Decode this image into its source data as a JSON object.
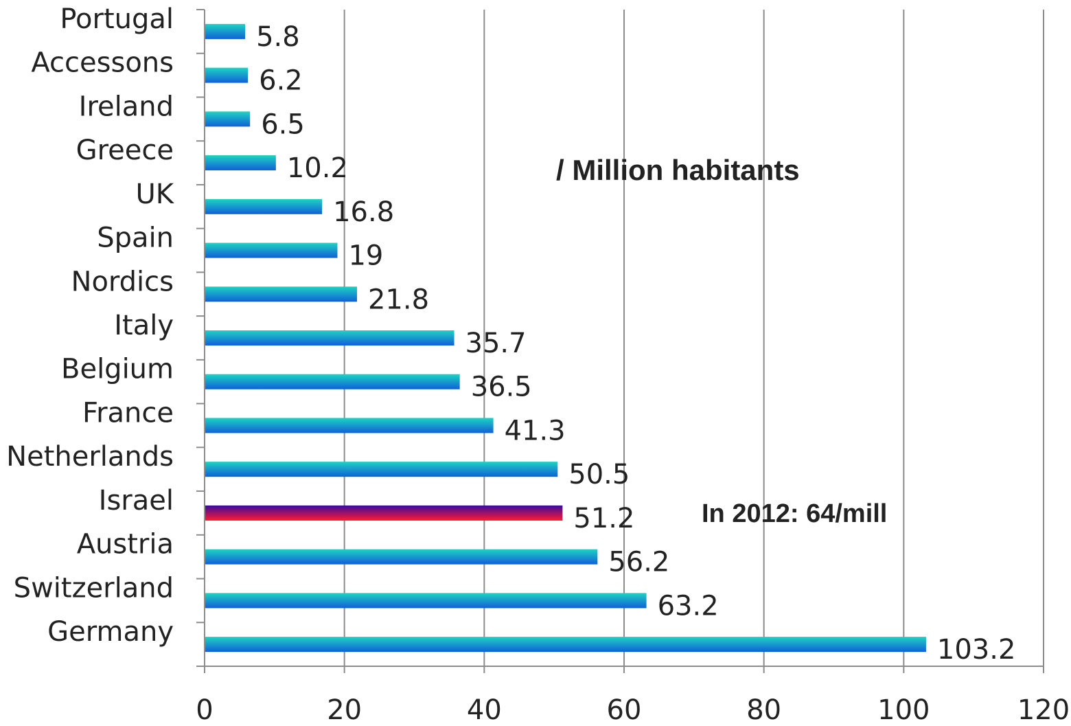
{
  "chart_data": {
    "type": "bar",
    "orientation": "horizontal",
    "categories": [
      "Portugal",
      "Accessons",
      "Ireland",
      "Greece",
      "UK",
      "Spain",
      "Nordics",
      "Italy",
      "Belgium",
      "France",
      "Netherlands",
      "Israel",
      "Austria",
      "Switzerland",
      "Germany"
    ],
    "values": [
      5.8,
      6.2,
      6.5,
      10.2,
      16.8,
      19,
      21.8,
      35.7,
      36.5,
      41.3,
      50.5,
      51.2,
      56.2,
      63.2,
      103.2
    ],
    "value_labels": [
      "5.8",
      "6.2",
      "6.5",
      "10.2",
      "16.8",
      "19",
      "21.8",
      "35.7",
      "36.5",
      "41.3",
      "50.5",
      "51.2",
      "56.2",
      "63.2",
      "103.2"
    ],
    "highlight_category": "Israel",
    "xlim": [
      0,
      120
    ],
    "xticks": [
      0,
      20,
      40,
      60,
      80,
      100,
      120
    ],
    "xtick_labels": [
      "0",
      "20",
      "40",
      "60",
      "80",
      "100",
      "120"
    ],
    "grid": "vertical",
    "title": "",
    "xlabel": "",
    "ylabel": "",
    "annotations": [
      "/ Million habitants",
      "In 2012: 64/mill"
    ],
    "colors": {
      "bar_top": "#1fd3c2",
      "bar_bottom": "#1060d8",
      "highlight_top": "#3a0aa0",
      "highlight_bottom": "#ff1a30",
      "grid": "#8c8c8c"
    }
  }
}
